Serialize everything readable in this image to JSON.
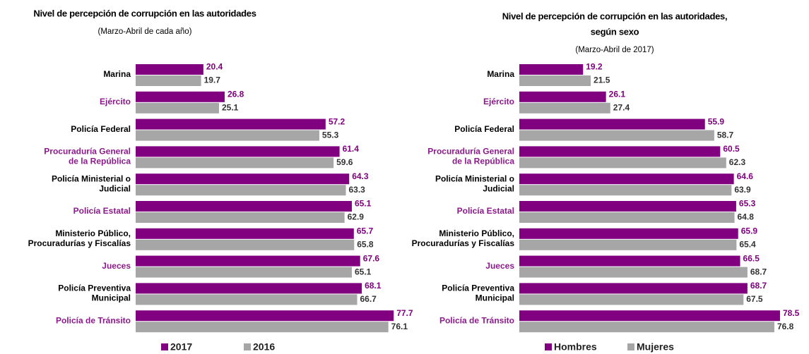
{
  "chart_data": [
    {
      "type": "bar",
      "orientation": "horizontal",
      "title": [
        "Nivel de percepción de corrupción en las autoridades"
      ],
      "subtitle": "(Marzo-Abril de cada año)",
      "categories": [
        [
          "Marina"
        ],
        [
          "Ejército"
        ],
        [
          "Policía Federal"
        ],
        [
          "Procuraduría General",
          "de la República"
        ],
        [
          "Policía Ministerial o",
          "Judicial"
        ],
        [
          "Policía Estatal"
        ],
        [
          "Ministerio Público,",
          "Procuradurías y Fiscalías"
        ],
        [
          "Jueces"
        ],
        [
          "Policía Preventiva",
          "Municipal"
        ],
        [
          "Policía de Tránsito"
        ]
      ],
      "category_colors": [
        "#000000",
        "#8b1a8b",
        "#000000",
        "#8b1a8b",
        "#000000",
        "#8b1a8b",
        "#000000",
        "#8b1a8b",
        "#000000",
        "#8b1a8b"
      ],
      "series": [
        {
          "name": "2017",
          "color": "#800080",
          "label_color": "#800080",
          "values": [
            20.4,
            26.8,
            57.2,
            61.4,
            64.3,
            65.1,
            65.7,
            67.6,
            68.1,
            77.7
          ]
        },
        {
          "name": "2016",
          "color": "#a6a6a6",
          "label_color": "#333333",
          "values": [
            19.7,
            25.1,
            55.3,
            59.6,
            63.3,
            62.9,
            65.8,
            65.1,
            66.7,
            76.1
          ]
        }
      ],
      "xlim": [
        0,
        80
      ],
      "legend": "bottom"
    },
    {
      "type": "bar",
      "orientation": "horizontal",
      "title": [
        "Nivel de percepción de corrupción en las autoridades,",
        "según sexo"
      ],
      "subtitle": "(Marzo-Abril de 2017)",
      "categories": [
        [
          "Marina"
        ],
        [
          "Ejército"
        ],
        [
          "Policía Federal"
        ],
        [
          "Procuraduría General",
          "de la República"
        ],
        [
          "Policía Ministerial o",
          "Judicial"
        ],
        [
          "Policía Estatal"
        ],
        [
          "Ministerio Público,",
          "Procuradurías y Fiscalías"
        ],
        [
          "Jueces"
        ],
        [
          "Policía Preventiva",
          "Municipal"
        ],
        [
          "Policía de Tránsito"
        ]
      ],
      "category_colors": [
        "#000000",
        "#8b1a8b",
        "#000000",
        "#8b1a8b",
        "#000000",
        "#8b1a8b",
        "#000000",
        "#8b1a8b",
        "#000000",
        "#8b1a8b"
      ],
      "series": [
        {
          "name": "Hombres",
          "color": "#800080",
          "label_color": "#800080",
          "values": [
            19.2,
            26.1,
            55.9,
            60.5,
            64.6,
            65.3,
            65.9,
            66.5,
            68.7,
            78.5
          ]
        },
        {
          "name": "Mujeres",
          "color": "#a6a6a6",
          "label_color": "#333333",
          "values": [
            21.5,
            27.4,
            58.7,
            62.3,
            63.9,
            64.8,
            65.4,
            68.7,
            67.5,
            76.8
          ]
        }
      ],
      "xlim": [
        0,
        80
      ],
      "legend": "bottom"
    }
  ]
}
